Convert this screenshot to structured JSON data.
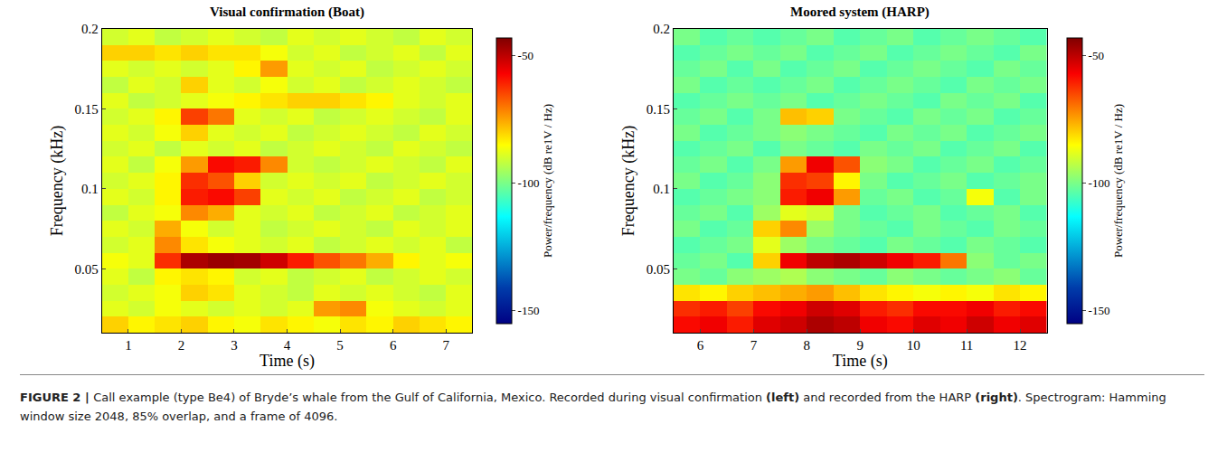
{
  "chart_data": [
    {
      "type": "heatmap",
      "title": "Visual confirmation (Boat)",
      "x_label": "Time (s)",
      "y_label": "Frequency (kHz)",
      "x": [
        0.75,
        1.25,
        1.75,
        2.25,
        2.75,
        3.25,
        3.75,
        4.25,
        4.75,
        5.25,
        5.75,
        6.25,
        6.75,
        7.25
      ],
      "y": [
        0.015,
        0.025,
        0.035,
        0.045,
        0.055,
        0.065,
        0.075,
        0.085,
        0.095,
        0.105,
        0.115,
        0.125,
        0.135,
        0.145,
        0.155,
        0.165,
        0.175,
        0.185,
        0.195
      ],
      "z": [
        [
          -80,
          -84,
          -82,
          -80,
          -84,
          -86,
          -82,
          -84,
          -86,
          -82,
          -84,
          -80,
          -82,
          -84
        ],
        [
          -88,
          -90,
          -86,
          -88,
          -90,
          -88,
          -90,
          -88,
          -74,
          -72,
          -86,
          -88,
          -90,
          -88
        ],
        [
          -90,
          -88,
          -86,
          -80,
          -82,
          -88,
          -90,
          -92,
          -88,
          -90,
          -88,
          -90,
          -92,
          -88
        ],
        [
          -88,
          -92,
          -84,
          -82,
          -84,
          -90,
          -88,
          -92,
          -90,
          -88,
          -92,
          -90,
          -88,
          -90
        ],
        [
          -86,
          -88,
          -62,
          -48,
          -46,
          -47,
          -52,
          -60,
          -66,
          -70,
          -76,
          -84,
          -88,
          -86
        ],
        [
          -90,
          -88,
          -72,
          -82,
          -86,
          -88,
          -90,
          -88,
          -92,
          -90,
          -88,
          -90,
          -88,
          -92
        ],
        [
          -88,
          -90,
          -76,
          -86,
          -90,
          -88,
          -92,
          -90,
          -88,
          -90,
          -92,
          -88,
          -90,
          -88
        ],
        [
          -92,
          -88,
          -86,
          -72,
          -76,
          -88,
          -90,
          -88,
          -92,
          -90,
          -88,
          -92,
          -90,
          -88
        ],
        [
          -88,
          -90,
          -84,
          -60,
          -58,
          -64,
          -88,
          -90,
          -88,
          -92,
          -90,
          -88,
          -92,
          -90
        ],
        [
          -90,
          -88,
          -84,
          -62,
          -66,
          -80,
          -90,
          -88,
          -90,
          -88,
          -92,
          -90,
          -88,
          -90
        ],
        [
          -88,
          -92,
          -86,
          -74,
          -58,
          -60,
          -72,
          -90,
          -92,
          -90,
          -88,
          -90,
          -92,
          -88
        ],
        [
          -90,
          -88,
          -92,
          -88,
          -90,
          -88,
          -92,
          -90,
          -88,
          -90,
          -92,
          -88,
          -90,
          -92
        ],
        [
          -88,
          -90,
          -86,
          -80,
          -88,
          -90,
          -88,
          -92,
          -90,
          -88,
          -90,
          -92,
          -88,
          -90
        ],
        [
          -90,
          -88,
          -84,
          -64,
          -70,
          -88,
          -90,
          -88,
          -92,
          -90,
          -88,
          -90,
          -92,
          -88
        ],
        [
          -88,
          -92,
          -90,
          -88,
          -86,
          -84,
          -82,
          -80,
          -80,
          -82,
          -84,
          -88,
          -90,
          -88
        ],
        [
          -92,
          -88,
          -90,
          -80,
          -88,
          -90,
          -86,
          -90,
          -88,
          -92,
          -90,
          -88,
          -90,
          -92
        ],
        [
          -88,
          -90,
          -88,
          -90,
          -88,
          -84,
          -74,
          -88,
          -90,
          -88,
          -92,
          -90,
          -88,
          -90
        ],
        [
          -80,
          -80,
          -82,
          -80,
          -82,
          -82,
          -86,
          -90,
          -88,
          -92,
          -90,
          -88,
          -92,
          -88
        ],
        [
          -90,
          -88,
          -92,
          -90,
          -88,
          -90,
          -92,
          -88,
          -90,
          -88,
          -90,
          -92,
          -88,
          -90
        ]
      ],
      "xlim": [
        0.5,
        7.5
      ],
      "xticks": [
        1,
        2,
        3,
        4,
        5,
        6,
        7
      ],
      "ylim": [
        0.01,
        0.2
      ],
      "yticks": [
        0.05,
        0.1,
        0.15,
        0.2
      ],
      "colorbar": {
        "label": "Power/frequency (dB re1V / Hz)",
        "range": [
          -155,
          -43
        ],
        "ticks": [
          -50,
          -100,
          -150
        ]
      }
    },
    {
      "type": "heatmap",
      "title": "Moored system (HARP)",
      "x_label": "Time (s)",
      "y_label": "Frequency (kHz)",
      "x": [
        5.75,
        6.25,
        6.75,
        7.25,
        7.75,
        8.25,
        8.75,
        9.25,
        9.75,
        10.25,
        10.75,
        11.25,
        11.75,
        12.25
      ],
      "y": [
        0.015,
        0.025,
        0.035,
        0.045,
        0.055,
        0.065,
        0.075,
        0.085,
        0.095,
        0.105,
        0.115,
        0.125,
        0.135,
        0.145,
        0.155,
        0.165,
        0.175,
        0.185,
        0.195
      ],
      "z": [
        [
          -58,
          -56,
          -60,
          -54,
          -52,
          -48,
          -50,
          -56,
          -58,
          -54,
          -56,
          -52,
          -56,
          -54
        ],
        [
          -62,
          -60,
          -64,
          -58,
          -56,
          -52,
          -54,
          -60,
          -62,
          -58,
          -58,
          -56,
          -60,
          -58
        ],
        [
          -82,
          -84,
          -80,
          -78,
          -76,
          -74,
          -78,
          -82,
          -84,
          -86,
          -84,
          -86,
          -82,
          -84
        ],
        [
          -100,
          -102,
          -98,
          -96,
          -94,
          -98,
          -100,
          -102,
          -98,
          -100,
          -102,
          -100,
          -98,
          -102
        ],
        [
          -102,
          -100,
          -104,
          -80,
          -56,
          -50,
          -48,
          -52,
          -56,
          -60,
          -70,
          -98,
          -102,
          -100
        ],
        [
          -104,
          -102,
          -100,
          -88,
          -96,
          -100,
          -102,
          -104,
          -100,
          -102,
          -104,
          -100,
          -102,
          -104
        ],
        [
          -100,
          -104,
          -102,
          -80,
          -72,
          -96,
          -100,
          -102,
          -104,
          -100,
          -102,
          -104,
          -100,
          -102
        ],
        [
          -102,
          -100,
          -104,
          -96,
          -88,
          -90,
          -100,
          -104,
          -102,
          -100,
          -104,
          -102,
          -100,
          -104
        ],
        [
          -104,
          -102,
          -100,
          -98,
          -60,
          -56,
          -74,
          -102,
          -100,
          -104,
          -102,
          -86,
          -104,
          -100
        ],
        [
          -100,
          -104,
          -102,
          -98,
          -62,
          -64,
          -84,
          -100,
          -104,
          -102,
          -100,
          -104,
          -102,
          -100
        ],
        [
          -102,
          -100,
          -104,
          -100,
          -74,
          -56,
          -66,
          -98,
          -100,
          -104,
          -102,
          -100,
          -104,
          -102
        ],
        [
          -104,
          -102,
          -100,
          -104,
          -100,
          -102,
          -104,
          -100,
          -102,
          -100,
          -104,
          -102,
          -100,
          -104
        ],
        [
          -100,
          -104,
          -102,
          -100,
          -98,
          -100,
          -102,
          -104,
          -100,
          -102,
          -100,
          -104,
          -102,
          -100
        ],
        [
          -102,
          -100,
          -104,
          -100,
          -78,
          -80,
          -100,
          -102,
          -104,
          -100,
          -102,
          -100,
          -104,
          -102
        ],
        [
          -104,
          -102,
          -100,
          -102,
          -100,
          -104,
          -102,
          -100,
          -102,
          -104,
          -100,
          -102,
          -100,
          -104
        ],
        [
          -100,
          -104,
          -102,
          -104,
          -102,
          -100,
          -104,
          -102,
          -100,
          -102,
          -104,
          -100,
          -102,
          -100
        ],
        [
          -102,
          -100,
          -104,
          -100,
          -104,
          -102,
          -100,
          -104,
          -102,
          -100,
          -102,
          -104,
          -100,
          -102
        ],
        [
          -104,
          -102,
          -100,
          -102,
          -100,
          -104,
          -102,
          -100,
          -104,
          -102,
          -100,
          -102,
          -104,
          -100
        ],
        [
          -100,
          -104,
          -102,
          -104,
          -102,
          -100,
          -104,
          -102,
          -100,
          -104,
          -102,
          -100,
          -102,
          -104
        ]
      ],
      "xlim": [
        5.5,
        12.5
      ],
      "xticks": [
        6,
        7,
        8,
        9,
        10,
        11,
        12
      ],
      "ylim": [
        0.01,
        0.2
      ],
      "yticks": [
        0.05,
        0.1,
        0.15,
        0.2
      ],
      "colorbar": {
        "label": "Power/frequency (dB re1V / Hz)",
        "range": [
          -155,
          -43
        ],
        "ticks": [
          -50,
          -100,
          -150
        ]
      }
    }
  ],
  "caption": {
    "parts": [
      {
        "text": "FIGURE 2 | ",
        "bold": true
      },
      {
        "text": "Call example (type Be4) of Bryde’s whale from the Gulf of California, Mexico. Recorded during visual confirmation ",
        "bold": false
      },
      {
        "text": "(left)",
        "bold": true
      },
      {
        "text": " and recorded from the HARP ",
        "bold": false
      },
      {
        "text": "(right)",
        "bold": true
      },
      {
        "text": ". Spectrogram: Hamming window size 2048, 85% overlap, and a frame of 4096.",
        "bold": false
      }
    ]
  }
}
